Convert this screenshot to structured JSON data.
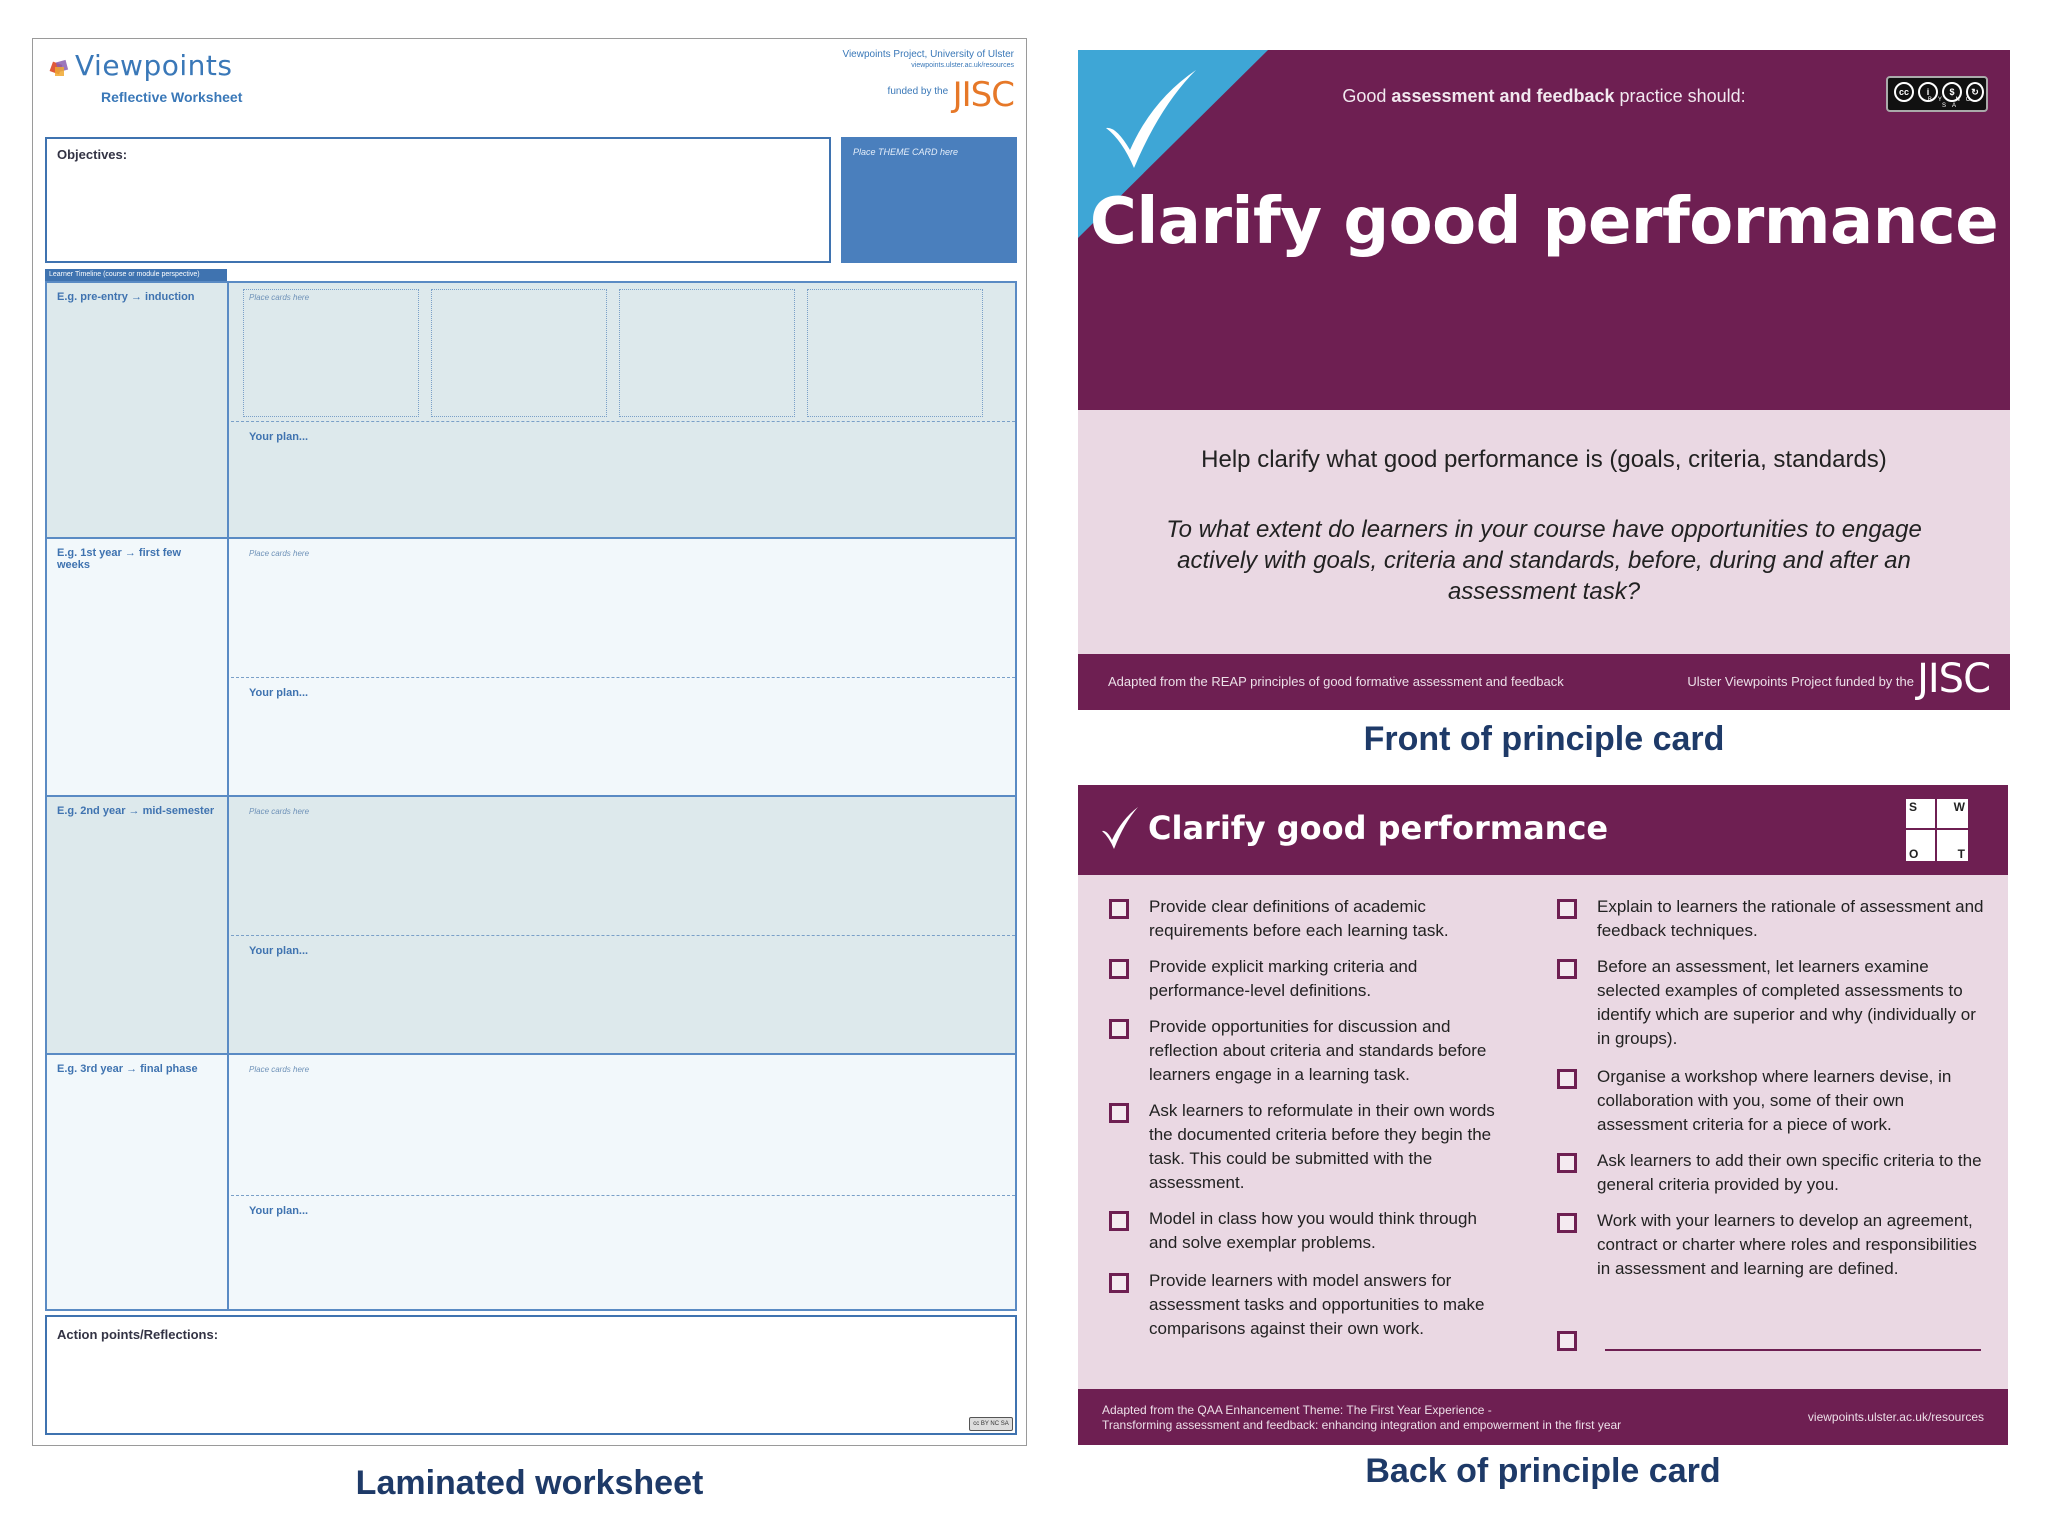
{
  "worksheet": {
    "logo_name": "Viewpoints",
    "logo_sub": "Reflective Worksheet",
    "credit_line1": "Viewpoints Project, University of Ulster",
    "credit_line2": "viewpoints.ulster.ac.uk/resources",
    "funded_by": "funded by the",
    "funder": "JISC",
    "objectives_label": "Objectives:",
    "theme_label": "Place THEME CARD here",
    "timeline_label": "Learner Timeline (course or module perspective)",
    "rows": [
      {
        "stage": "E.g. pre-entry → induction",
        "cards": "Place cards here",
        "plan": "Your plan..."
      },
      {
        "stage": "E.g. 1st year → first few weeks",
        "cards": "Place cards here",
        "plan": "Your plan..."
      },
      {
        "stage": "E.g. 2nd year → mid-semester",
        "cards": "Place cards here",
        "plan": "Your plan..."
      },
      {
        "stage": "E.g. 3rd year → final phase",
        "cards": "Place cards here",
        "plan": "Your plan..."
      }
    ],
    "actions_label": "Action points/Reflections:",
    "cc": "cc BY NC SA"
  },
  "captions": {
    "worksheet": "Laminated worksheet",
    "front": "Front of principle card",
    "back": "Back of principle card"
  },
  "front_card": {
    "intro_pre": "Good ",
    "intro_bold": "assessment and feedback",
    "intro_post": " practice should:",
    "title": "Clarify good performance",
    "question1": "Help clarify what good performance is (goals, criteria, standards)",
    "question2": "To what extent do learners in your course have opportunities to engage actively with goals, criteria and standards, before, during and after an assessment task?",
    "footer_left": "Adapted from the REAP principles of good formative assessment and feedback",
    "footer_right": "Ulster Viewpoints Project funded by the",
    "funder": "JISC",
    "cc_labels": "BY NC SA"
  },
  "back_card": {
    "title": "Clarify good performance",
    "swot": [
      "S",
      "W",
      "O",
      "T"
    ],
    "left_items": [
      "Provide clear definitions of academic requirements before each learning task.",
      "Provide explicit marking criteria and performance-level definitions.",
      "Provide opportunities for discussion and reflection about criteria and standards before learners engage in a learning task.",
      "Ask learners to reformulate in their own words the documented criteria before they begin the task. This could be submitted with the assessment.",
      "Model in class how you would think through and solve exemplar problems.",
      "Provide learners with model answers for assessment tasks and opportunities to make comparisons against their own work."
    ],
    "right_items": [
      "Explain to learners the rationale of assessment and feedback techniques.",
      "Before an assessment, let learners examine selected examples of completed assessments to identify which are superior and why (individually or in groups).",
      "Organise a workshop where learners devise, in collaboration with you, some of their own assessment criteria for a piece of work.",
      "Ask learners to add their own specific criteria to the general criteria provided by you.",
      "Work with your learners to develop an agreement, contract or charter where roles and responsibilities in assessment and learning are defined."
    ],
    "footer_left_1": "Adapted from the QAA Enhancement Theme: The First Year Experience -",
    "footer_left_2": "Transforming assessment and feedback: enhancing integration and empowerment in the first year",
    "footer_right": "viewpoints.ulster.ac.uk/resources"
  }
}
